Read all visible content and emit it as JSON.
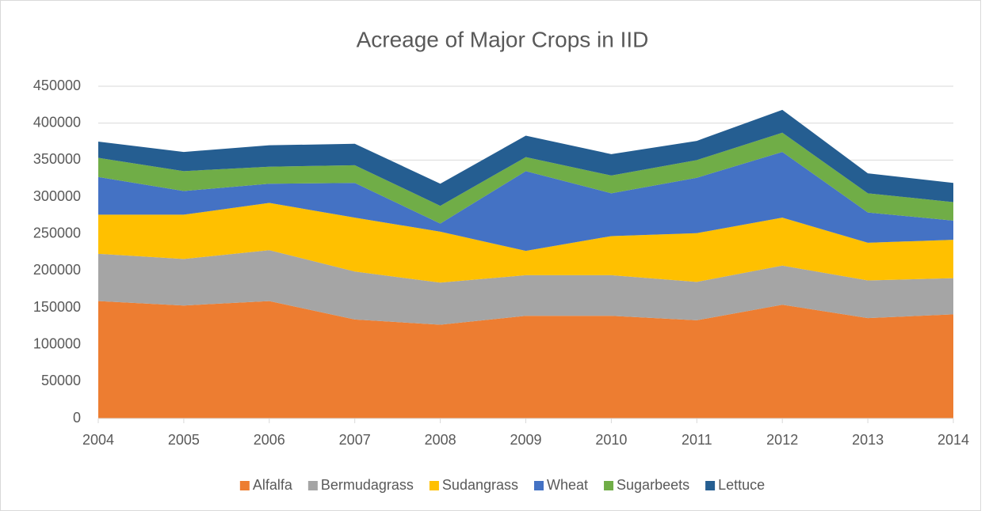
{
  "chart_data": {
    "type": "stacked-area",
    "title": "Acreage of Major Crops in IID",
    "x": [
      2004,
      2005,
      2006,
      2007,
      2008,
      2009,
      2010,
      2011,
      2012,
      2013,
      2014
    ],
    "xlim": [
      2004,
      2014
    ],
    "xticks": [
      2004,
      2005,
      2006,
      2007,
      2008,
      2009,
      2010,
      2011,
      2012,
      2013,
      2014
    ],
    "ylim": [
      0,
      450000
    ],
    "yticks": [
      0,
      50000,
      100000,
      150000,
      200000,
      250000,
      300000,
      350000,
      400000,
      450000
    ],
    "grid": true,
    "legend": "bottom",
    "series": [
      {
        "name": "Alfalfa",
        "color": "#ed7d31",
        "values": [
          159000,
          153000,
          159000,
          134000,
          127000,
          139000,
          139000,
          133000,
          154000,
          136000,
          141000
        ]
      },
      {
        "name": "Bermudagrass",
        "color": "#a5a5a5",
        "values": [
          64000,
          63000,
          69000,
          65000,
          57000,
          55000,
          55000,
          52000,
          53000,
          51000,
          49000
        ]
      },
      {
        "name": "Sudangrass",
        "color": "#ffc000",
        "values": [
          53000,
          60000,
          64000,
          73000,
          69000,
          33000,
          53000,
          66000,
          65000,
          51000,
          52000
        ]
      },
      {
        "name": "Wheat",
        "color": "#4472c4",
        "values": [
          51000,
          32000,
          26000,
          47000,
          11000,
          108000,
          58000,
          75000,
          89000,
          41000,
          26000
        ]
      },
      {
        "name": "Sugarbeets",
        "color": "#70ad47",
        "values": [
          26000,
          27000,
          23000,
          24000,
          24000,
          19000,
          24000,
          24000,
          26000,
          26000,
          25000
        ]
      },
      {
        "name": "Lettuce",
        "color": "#255e91",
        "values": [
          22000,
          26000,
          29000,
          29000,
          30000,
          29000,
          29000,
          26000,
          31000,
          27000,
          26000
        ]
      }
    ]
  }
}
